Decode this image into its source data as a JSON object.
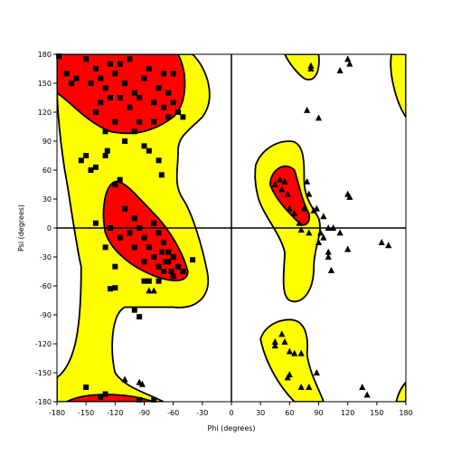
{
  "chart_data": {
    "type": "scatter",
    "xlabel": "Phi (degrees)",
    "ylabel": "Psi (degrees)",
    "xlim": [
      -180,
      180
    ],
    "ylim": [
      -180,
      180
    ],
    "xticks": [
      -180,
      -150,
      -120,
      -90,
      -60,
      -30,
      0,
      30,
      60,
      90,
      120,
      150,
      180
    ],
    "yticks": [
      -180,
      -150,
      -120,
      -90,
      -60,
      -30,
      0,
      30,
      60,
      90,
      120,
      150,
      180
    ],
    "series": [
      {
        "marker": "square",
        "color": "#000000",
        "x": [
          -178,
          -170,
          -165,
          -160,
          -150,
          -145,
          -140,
          -135,
          -130,
          -125,
          -120,
          -115,
          -110,
          -105,
          -100,
          -95,
          -90,
          -85,
          -80,
          -75,
          -70,
          -65,
          -60,
          -55,
          -50,
          -120,
          -130,
          -140,
          -100,
          -110,
          -90,
          -85,
          -75,
          -72,
          -150,
          -155,
          -145,
          -140,
          -130,
          -128,
          -115,
          -105,
          -65,
          -60,
          -70,
          -80,
          -95,
          -125,
          -135,
          -120,
          -115,
          -110,
          -100,
          -95,
          -90,
          -85,
          -80,
          -75,
          -70,
          -65,
          -60,
          -55,
          -65,
          -70,
          -75,
          -80,
          -90,
          -100,
          -105,
          -115,
          -125,
          -130,
          -120,
          -140,
          -85,
          -75,
          -60,
          -50,
          -40,
          -125,
          -120,
          -100,
          -95,
          -90,
          -62,
          -68,
          -72,
          -150,
          -135,
          -130,
          -95,
          -80
        ],
        "values": [
          178,
          160,
          150,
          155,
          175,
          150,
          165,
          155,
          145,
          170,
          160,
          135,
          150,
          125,
          140,
          110,
          155,
          165,
          130,
          145,
          160,
          140,
          130,
          120,
          115,
          110,
          100,
          120,
          100,
          90,
          85,
          80,
          70,
          55,
          75,
          70,
          60,
          63,
          75,
          80,
          170,
          175,
          115,
          160,
          125,
          110,
          135,
          135,
          130,
          45,
          50,
          20,
          10,
          0,
          -10,
          -20,
          -30,
          -40,
          -45,
          -35,
          -50,
          -40,
          -25,
          -15,
          -5,
          5,
          -35,
          -20,
          -5,
          -10,
          0,
          -20,
          -40,
          5,
          -55,
          -55,
          -30,
          -45,
          -33,
          -63,
          -62,
          -85,
          -92,
          -55,
          -45,
          -35,
          -25,
          -165,
          -175,
          -172,
          -178,
          -178
        ]
      },
      {
        "marker": "triangle",
        "color": "#000000",
        "x": [
          82,
          82,
          112,
          120,
          122,
          78,
          90,
          45,
          50,
          55,
          52,
          58,
          60,
          65,
          70,
          72,
          75,
          80,
          85,
          88,
          78,
          80,
          90,
          92,
          95,
          95,
          100,
          105,
          112,
          120,
          100,
          100,
          103,
          120,
          122,
          155,
          162,
          45,
          45,
          52,
          55,
          60,
          65,
          58,
          60,
          72,
          72,
          80,
          88,
          135,
          140,
          -110,
          -95,
          -92,
          -85,
          -80
        ],
        "values": [
          168,
          165,
          163,
          175,
          170,
          122,
          114,
          45,
          50,
          48,
          40,
          35,
          20,
          15,
          5,
          -2,
          20,
          -5,
          18,
          20,
          48,
          35,
          -15,
          -5,
          -10,
          12,
          0,
          0,
          -5,
          -22,
          -30,
          -25,
          -44,
          35,
          32,
          -15,
          -18,
          -118,
          -122,
          -110,
          -118,
          -128,
          -130,
          -155,
          -152,
          -130,
          -165,
          -165,
          -150,
          -165,
          -173,
          -157,
          -160,
          -162,
          -65,
          -65
        ]
      }
    ]
  }
}
